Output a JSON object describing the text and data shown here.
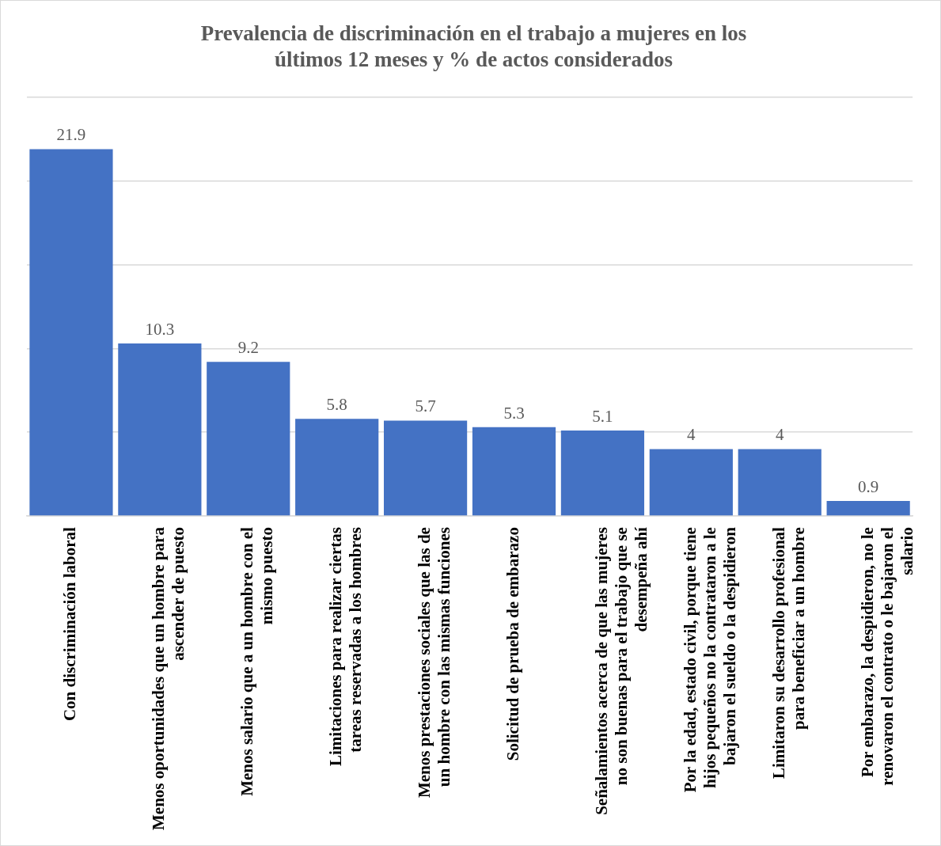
{
  "chart_data": {
    "type": "bar",
    "title": "Prevalencia de discriminación en el trabajo a mujeres en los últimos 12 meses y % de actos considerados",
    "categories": [
      "Con discriminación laboral",
      "Menos oportunidades que un hombre para ascender de puesto",
      "Menos salario que a un hombre con el mismo puesto",
      "Limitaciones para realizar ciertas tareas reservadas a los hombres",
      "Menos prestaciones sociales que las de un hombre con las mismas funciones",
      "Solicitud de prueba de embarazo",
      "Señalamientos acerca de que las mujeres no son buenas para el trabajo que se desempeña ahí",
      "Por la edad, estado civil, porque tiene hijos pequeños no la contrataron a le bajaron el sueldo o la despidieron",
      "Limitaron su desarrollo profesional para beneficiar a un hombre",
      "Por embarazo, la despidieron, no le renovaron el contrato o le bajaron el salario"
    ],
    "values": [
      21.9,
      10.3,
      9.2,
      5.8,
      5.7,
      5.3,
      5.1,
      4,
      4,
      0.9
    ],
    "color": "#4472c4",
    "ylim": [
      0,
      25
    ],
    "yticks": [
      {
        "value": 0,
        "label": null
      },
      {
        "value": 5,
        "label": null
      },
      {
        "value": 10,
        "label": null
      },
      {
        "value": 15,
        "label": null
      },
      {
        "value": 20,
        "label": null
      },
      {
        "value": 25,
        "label": null
      }
    ],
    "tick_labels": "x",
    "grid": "y",
    "legend": false,
    "data_labels": true
  }
}
